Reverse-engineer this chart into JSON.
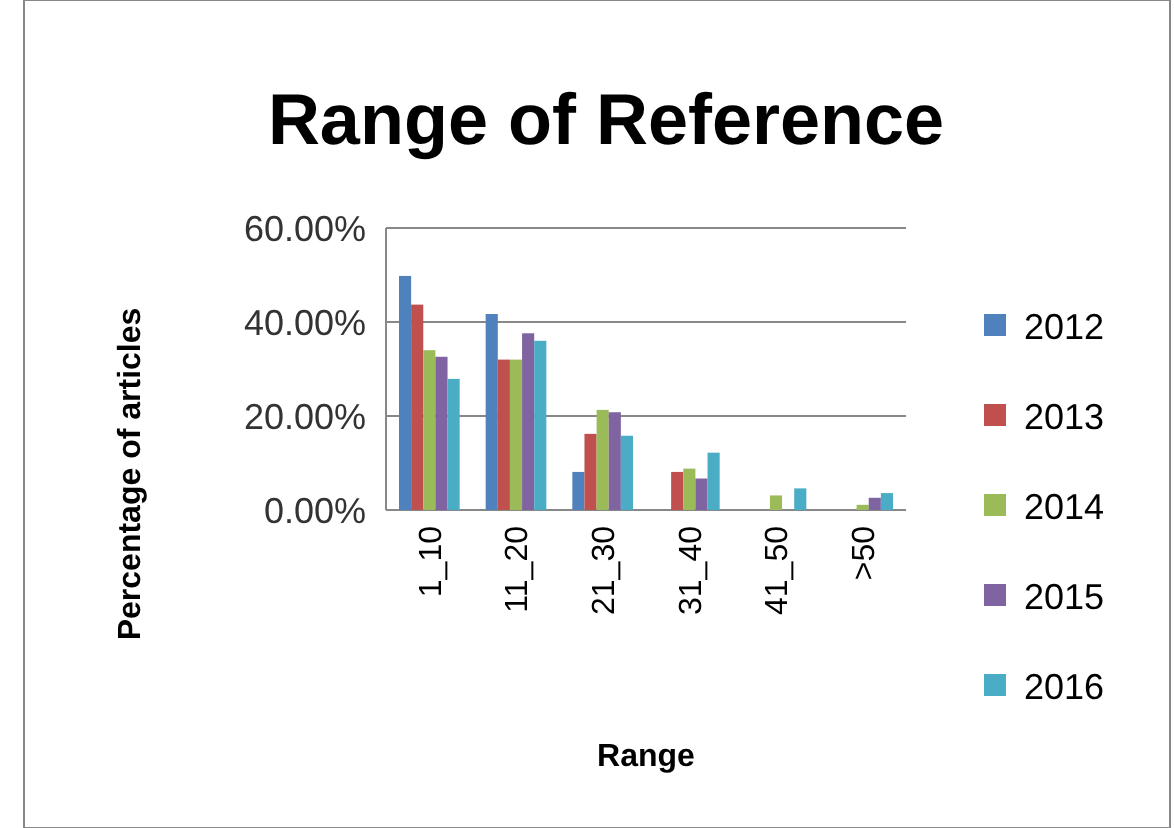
{
  "chart_data": {
    "type": "bar",
    "title": "Range of Reference",
    "xlabel": "Range",
    "ylabel": "Percentage of articles",
    "categories": [
      "1_10",
      "11_20",
      "21_30",
      "31_40",
      "41_50",
      ">50"
    ],
    "series": [
      {
        "name": "2012",
        "color": "#4f81bd",
        "values": [
          49.8,
          41.7,
          8.1,
          0,
          0,
          0
        ]
      },
      {
        "name": "2013",
        "color": "#c0504d",
        "values": [
          43.7,
          32,
          16.2,
          8.1,
          0,
          0
        ]
      },
      {
        "name": "2014",
        "color": "#9bbb59",
        "values": [
          34,
          32,
          21.3,
          8.8,
          3.1,
          1.1
        ]
      },
      {
        "name": "2015",
        "color": "#8064a2",
        "values": [
          32.6,
          37.6,
          20.8,
          6.7,
          0,
          2.6
        ]
      },
      {
        "name": "2016",
        "color": "#4bacc6",
        "values": [
          27.9,
          36,
          15.8,
          12.2,
          4.6,
          3.6
        ]
      }
    ],
    "ylim": [
      0,
      60
    ],
    "yticks": [
      {
        "value": 0,
        "label": "0.00%"
      },
      {
        "value": 20,
        "label": "20.00%"
      },
      {
        "value": 40,
        "label": "40.00%"
      },
      {
        "value": 60,
        "label": "60.00%"
      }
    ],
    "grid": "y",
    "legend": "right"
  }
}
